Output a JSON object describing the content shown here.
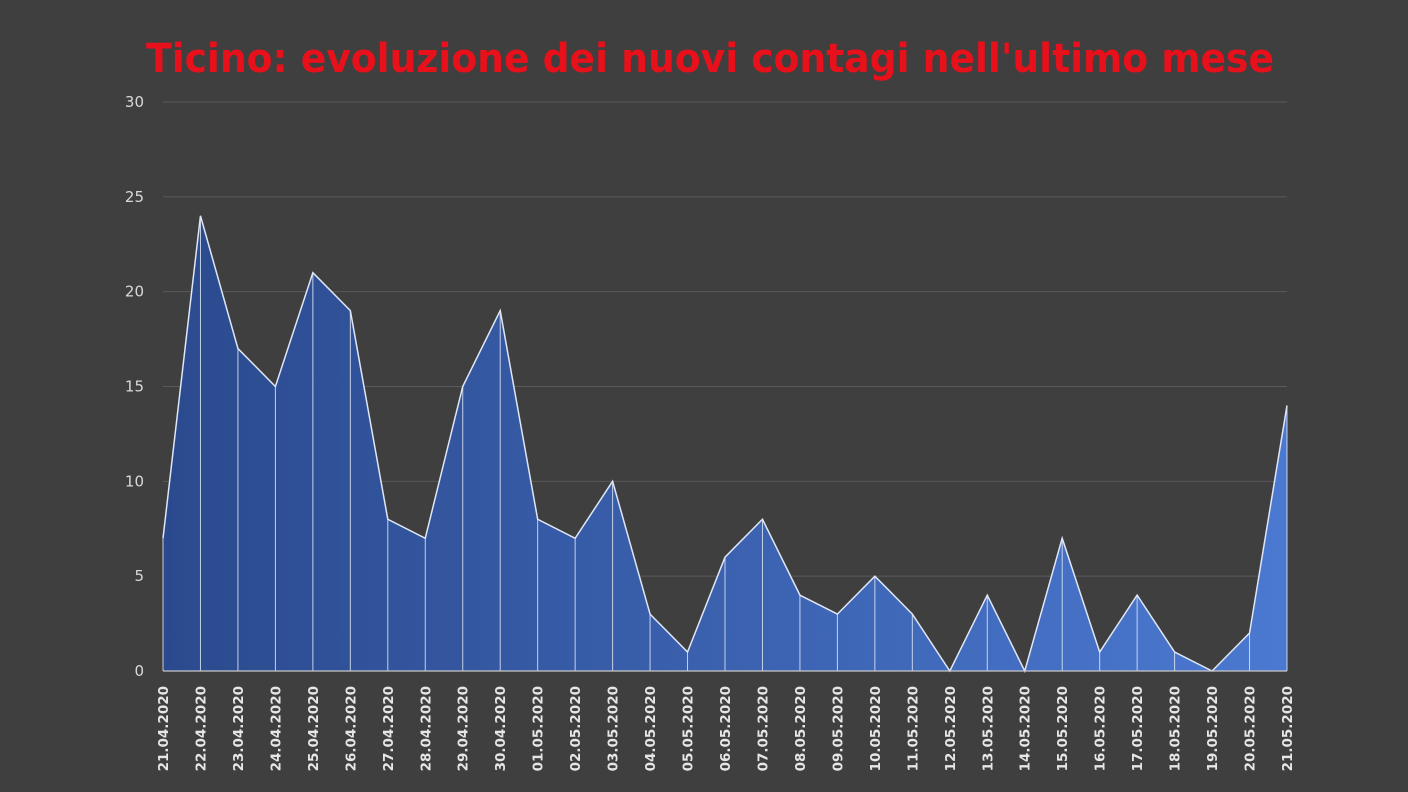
{
  "colors": {
    "background": "#3f3f3f",
    "title": "#e8101a",
    "grid": "#5a5a5a",
    "area_top": "#2e4e93",
    "area_bottom_right": "#4a78cf",
    "outline": "#dfe6f5",
    "tick_text": "#d9d9d9"
  },
  "chart_data": {
    "type": "area",
    "title": "Ticino: evoluzione dei nuovi contagi nell'ultimo mese",
    "xlabel": "",
    "ylabel": "",
    "ylim": [
      0,
      30
    ],
    "yticks": [
      0,
      5,
      10,
      15,
      20,
      25,
      30
    ],
    "grid": true,
    "legend": "none",
    "categories": [
      "21.04.2020",
      "22.04.2020",
      "23.04.2020",
      "24.04.2020",
      "25.04.2020",
      "26.04.2020",
      "27.04.2020",
      "28.04.2020",
      "29.04.2020",
      "30.04.2020",
      "01.05.2020",
      "02.05.2020",
      "03.05.2020",
      "04.05.2020",
      "05.05.2020",
      "06.05.2020",
      "07.05.2020",
      "08.05.2020",
      "09.05.2020",
      "10.05.2020",
      "11.05.2020",
      "12.05.2020",
      "13.05.2020",
      "14.05.2020",
      "15.05.2020",
      "16.05.2020",
      "17.05.2020",
      "18.05.2020",
      "19.05.2020",
      "20.05.2020",
      "21.05.2020"
    ],
    "values": [
      7,
      24,
      17,
      15,
      21,
      19,
      8,
      7,
      15,
      19,
      8,
      7,
      10,
      3,
      1,
      6,
      8,
      4,
      3,
      5,
      3,
      0,
      4,
      0,
      7,
      1,
      4,
      1,
      0,
      2,
      14
    ]
  }
}
